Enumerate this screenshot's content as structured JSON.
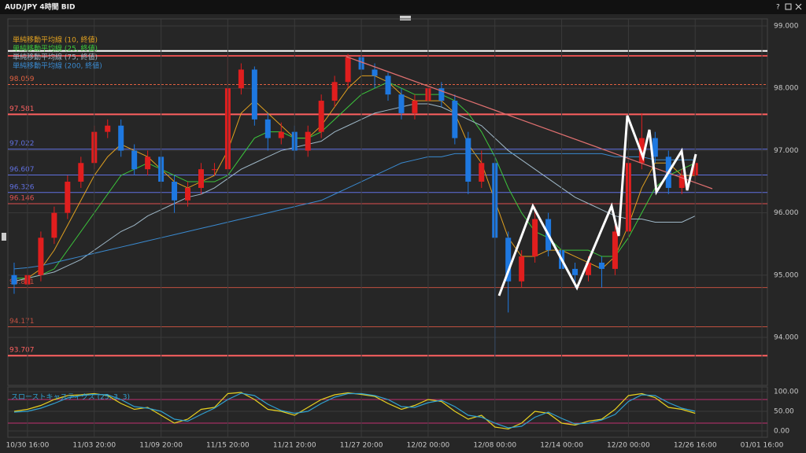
{
  "window": {
    "title": "AUD/JPY 4時間 BID",
    "help": "?"
  },
  "chart_data": [
    {
      "type": "candlestick",
      "legend": [
        {
          "name": "単純移動平均線 (10, 終値)",
          "color": "#e0a020",
          "values": [
            94.9,
            94.95,
            95.1,
            95.4,
            95.8,
            96.2,
            96.6,
            96.9,
            97.1,
            97.0,
            96.9,
            96.7,
            96.5,
            96.4,
            96.5,
            96.6,
            97.0,
            97.6,
            97.8,
            97.6,
            97.4,
            97.2,
            97.2,
            97.4,
            97.7,
            98.0,
            98.2,
            98.2,
            98.1,
            97.9,
            97.8,
            97.8,
            97.8,
            97.6,
            97.1,
            96.8,
            96.2,
            95.6,
            95.3,
            95.3,
            95.4,
            95.4,
            95.3,
            95.2,
            95.1,
            95.3,
            95.8,
            96.4,
            96.8,
            96.8,
            96.6,
            96.6
          ]
        },
        {
          "name": "単純移動平均線 (25, 終値)",
          "color": "#3cc83c",
          "values": [
            94.95,
            94.95,
            95.0,
            95.1,
            95.4,
            95.7,
            96.0,
            96.3,
            96.6,
            96.7,
            96.8,
            96.7,
            96.6,
            96.5,
            96.5,
            96.5,
            96.6,
            96.9,
            97.2,
            97.3,
            97.3,
            97.2,
            97.2,
            97.3,
            97.5,
            97.7,
            97.9,
            98.0,
            98.1,
            98.0,
            97.9,
            97.9,
            97.9,
            97.8,
            97.6,
            97.3,
            96.9,
            96.4,
            96.0,
            95.7,
            95.6,
            95.4,
            95.4,
            95.4,
            95.3,
            95.3,
            95.6,
            96.0,
            96.4,
            96.6,
            96.7,
            96.8
          ]
        },
        {
          "name": "単純移動平均線 (75, 終値)",
          "color": "#9fb8c8",
          "values": [
            94.9,
            94.95,
            95.0,
            95.05,
            95.15,
            95.25,
            95.4,
            95.55,
            95.7,
            95.8,
            95.95,
            96.05,
            96.15,
            96.25,
            96.3,
            96.4,
            96.55,
            96.7,
            96.8,
            96.9,
            97.0,
            97.05,
            97.1,
            97.15,
            97.3,
            97.4,
            97.5,
            97.6,
            97.65,
            97.7,
            97.75,
            97.75,
            97.7,
            97.6,
            97.5,
            97.4,
            97.2,
            97.0,
            96.85,
            96.7,
            96.55,
            96.4,
            96.25,
            96.15,
            96.05,
            95.95,
            95.9,
            95.9,
            95.85,
            95.85,
            95.85,
            95.95
          ]
        },
        {
          "name": "単純移動平均線 (200, 終値)",
          "color": "#3a8ad0",
          "values": [
            95.1,
            95.12,
            95.15,
            95.2,
            95.25,
            95.3,
            95.35,
            95.4,
            95.45,
            95.5,
            95.55,
            95.6,
            95.65,
            95.7,
            95.75,
            95.8,
            95.85,
            95.9,
            95.95,
            96.0,
            96.05,
            96.1,
            96.15,
            96.2,
            96.3,
            96.4,
            96.5,
            96.6,
            96.7,
            96.8,
            96.85,
            96.9,
            96.9,
            96.95,
            96.95,
            96.95,
            96.95,
            96.95,
            96.95,
            96.95,
            96.95,
            96.95,
            96.95,
            96.95,
            96.95,
            96.9,
            96.9,
            96.9,
            96.85,
            96.85,
            96.85,
            96.85
          ]
        }
      ],
      "open": [
        95.0,
        94.85,
        95.0,
        95.6,
        96.0,
        96.5,
        96.8,
        97.3,
        97.4,
        97.0,
        96.7,
        96.9,
        96.5,
        96.2,
        96.4,
        96.7,
        96.7,
        98.0,
        98.3,
        97.5,
        97.2,
        97.3,
        97.0,
        97.3,
        97.8,
        98.1,
        98.5,
        98.3,
        98.2,
        97.9,
        97.6,
        97.8,
        98.0,
        97.8,
        97.2,
        96.5,
        96.8,
        95.6,
        94.9,
        95.3,
        95.9,
        95.4,
        95.1,
        95.0,
        95.2,
        95.1,
        95.7,
        96.8,
        97.2,
        96.9,
        96.4,
        96.6
      ],
      "high": [
        95.2,
        95.1,
        95.7,
        96.1,
        96.6,
        96.9,
        97.4,
        97.5,
        97.5,
        97.1,
        97.0,
        97.0,
        96.6,
        96.5,
        96.8,
        96.8,
        98.55,
        98.4,
        98.35,
        97.6,
        97.45,
        97.4,
        97.4,
        97.9,
        98.2,
        98.55,
        98.55,
        98.4,
        98.25,
        98.0,
        97.9,
        98.1,
        98.1,
        97.9,
        97.3,
        97.0,
        96.9,
        95.7,
        95.4,
        96.1,
        96.0,
        95.5,
        95.2,
        95.3,
        95.3,
        95.8,
        96.9,
        97.6,
        97.3,
        97.0,
        96.7,
        96.9
      ],
      "low": [
        94.7,
        94.75,
        94.9,
        95.5,
        95.9,
        96.4,
        96.7,
        97.2,
        96.9,
        96.6,
        96.6,
        96.4,
        96.0,
        96.1,
        96.3,
        96.6,
        96.6,
        97.9,
        97.4,
        97.0,
        97.1,
        96.85,
        96.9,
        97.2,
        97.7,
        98.0,
        98.2,
        98.0,
        97.8,
        97.5,
        97.5,
        97.7,
        97.7,
        97.1,
        96.3,
        96.4,
        93.7,
        94.4,
        94.8,
        95.2,
        95.3,
        94.8,
        94.8,
        94.9,
        94.8,
        95.0,
        95.6,
        96.7,
        96.8,
        96.3,
        96.3,
        96.5
      ],
      "close": [
        94.85,
        95.0,
        95.6,
        96.0,
        96.5,
        96.8,
        97.3,
        97.4,
        97.0,
        96.7,
        96.9,
        96.5,
        96.2,
        96.4,
        96.7,
        96.7,
        98.0,
        98.3,
        97.5,
        97.2,
        97.3,
        97.0,
        97.3,
        97.8,
        98.1,
        98.5,
        98.3,
        98.2,
        97.9,
        97.6,
        97.8,
        98.0,
        97.8,
        97.2,
        96.5,
        96.8,
        95.6,
        94.9,
        95.3,
        95.9,
        95.4,
        95.1,
        95.0,
        95.2,
        95.1,
        95.7,
        96.8,
        97.2,
        96.9,
        96.4,
        96.6,
        96.8
      ],
      "up_color": "#e01e1e",
      "down_color": "#1e78e0",
      "levels": [
        98.059,
        97.581,
        97.022,
        96.607,
        96.326,
        96.146,
        94.801,
        94.171,
        93.707
      ],
      "level_colors": [
        "#e06040",
        "#ff6060",
        "#6070e0",
        "#6070e0",
        "#6070e0",
        "#e05050",
        "#c05040",
        "#c05040",
        "#ff6060"
      ],
      "lines": [
        {
          "value": 98.6,
          "color": "#ffffff"
        },
        {
          "value": 98.52,
          "color": "#e05050"
        }
      ],
      "xlim": [
        -0.47,
        56.41
      ],
      "ylim": [
        93.23,
        99.114
      ],
      "yticks": [
        {
          "value": 94,
          "label": "94.000"
        },
        {
          "value": 95,
          "label": "95.000"
        },
        {
          "value": 96,
          "label": "96.000"
        },
        {
          "value": 97,
          "label": "97.000"
        },
        {
          "value": 98,
          "label": "98.000"
        },
        {
          "value": 99,
          "label": "99.000"
        }
      ]
    },
    {
      "type": "line",
      "label": "スローストキャスティクス (25, 3, 3)",
      "series": [
        {
          "color": "#e6d020",
          "values": [
            50,
            55,
            65,
            80,
            90,
            92,
            95,
            90,
            70,
            55,
            60,
            40,
            20,
            30,
            55,
            60,
            95,
            98,
            80,
            55,
            50,
            40,
            60,
            80,
            92,
            97,
            93,
            88,
            70,
            55,
            65,
            80,
            75,
            50,
            30,
            40,
            10,
            5,
            20,
            50,
            45,
            20,
            15,
            25,
            30,
            55,
            90,
            95,
            85,
            60,
            55,
            45
          ]
        },
        {
          "color": "#30a0d0",
          "values": [
            48,
            50,
            58,
            70,
            84,
            90,
            93,
            92,
            80,
            62,
            58,
            50,
            30,
            25,
            42,
            58,
            80,
            96,
            90,
            68,
            52,
            45,
            50,
            70,
            86,
            95,
            95,
            90,
            80,
            62,
            60,
            72,
            78,
            62,
            40,
            35,
            20,
            8,
            12,
            35,
            48,
            32,
            18,
            20,
            28,
            42,
            75,
            92,
            90,
            72,
            58,
            50
          ]
        }
      ],
      "bands": [
        80,
        20
      ],
      "band_color": "#c03070",
      "xlim": [
        -0.47,
        56.41
      ],
      "ylim": [
        -16,
        112
      ],
      "yticks": [
        {
          "value": 0,
          "label": "0.00"
        },
        {
          "value": 50,
          "label": "50.00"
        },
        {
          "value": 100,
          "label": "100.00"
        }
      ],
      "xticks": [
        {
          "value": 1,
          "label": "10/30 16:00"
        },
        {
          "value": 6,
          "label": "11/03 20:00"
        },
        {
          "value": 11,
          "label": "11/09 20:00"
        },
        {
          "value": 16,
          "label": "11/15 20:00"
        },
        {
          "value": 21,
          "label": "11/21 20:00"
        },
        {
          "value": 26,
          "label": "11/27 20:00"
        },
        {
          "value": 31,
          "label": "12/02 00:00"
        },
        {
          "value": 36,
          "label": "12/08 00:00"
        },
        {
          "value": 41,
          "label": "12/14 00:00"
        },
        {
          "value": 46,
          "label": "12/20 00:00"
        },
        {
          "value": 51,
          "label": "12/26 16:00"
        },
        {
          "value": 56,
          "label": "01/01 16:00"
        }
      ]
    }
  ]
}
